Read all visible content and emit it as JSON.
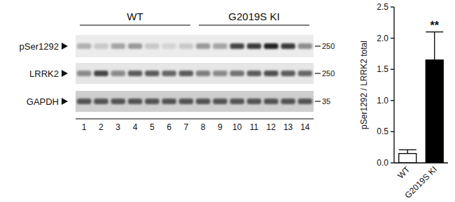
{
  "chart_data": {
    "type": "bar",
    "ylabel": "pSer1292 / LRRK2 total",
    "categories": [
      "WT",
      "G2019S KI"
    ],
    "values": [
      0.15,
      1.65
    ],
    "errors": [
      0.06,
      0.45
    ],
    "colors": [
      "#ffffff",
      "#000000"
    ],
    "ylim": [
      0,
      2.5
    ],
    "yticks": [
      {
        "value": 0,
        "label": "0.0"
      },
      0.5,
      {
        "value": 1,
        "label": "1.0"
      },
      1.5,
      {
        "value": 2,
        "label": "2.0"
      },
      2.5
    ],
    "annotations": [
      {
        "category": "G2019S KI",
        "text": "**"
      }
    ]
  },
  "blot": {
    "groups": [
      {
        "label": "WT",
        "lanes": 7
      },
      {
        "label": "G2019S KI",
        "lanes": 7
      }
    ],
    "lane_labels": [
      1,
      2,
      3,
      4,
      5,
      6,
      7,
      8,
      9,
      10,
      11,
      12,
      13,
      14
    ],
    "rows": [
      {
        "label": "pSer1292",
        "marker": 250,
        "intensity": [
          0.25,
          0.15,
          0.3,
          0.35,
          0.15,
          0.1,
          0.15,
          0.35,
          0.3,
          0.7,
          0.75,
          0.85,
          0.75,
          0.4
        ]
      },
      {
        "label": "LRRK2",
        "marker": 250,
        "intensity": [
          0.4,
          0.7,
          0.4,
          0.6,
          0.6,
          0.55,
          0.6,
          0.45,
          0.4,
          0.5,
          0.6,
          0.65,
          0.6,
          0.55
        ]
      },
      {
        "label": "GAPDH",
        "marker": 35,
        "intensity": [
          0.6,
          0.6,
          0.6,
          0.6,
          0.6,
          0.6,
          0.6,
          0.6,
          0.6,
          0.6,
          0.6,
          0.6,
          0.6,
          0.6
        ]
      }
    ]
  }
}
